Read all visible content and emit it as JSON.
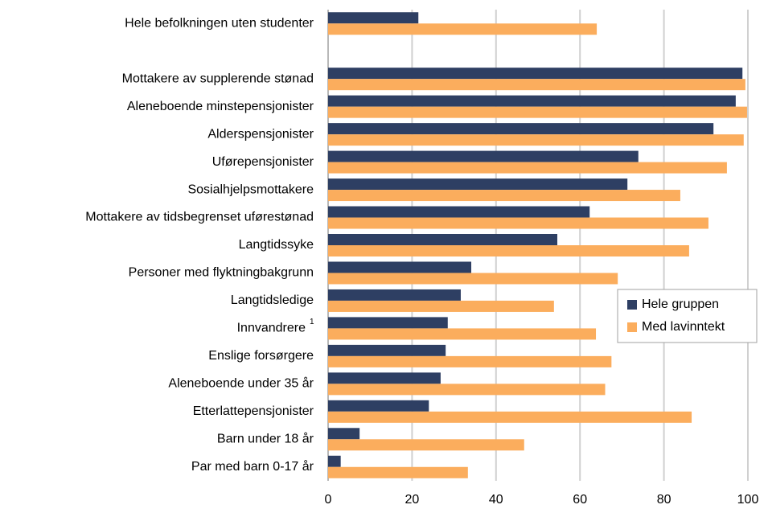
{
  "chart_data": {
    "type": "hbar",
    "categories": [
      "Hele befolkningen uten studenter",
      null,
      "Mottakere av supplerende stønad",
      "Aleneboende minstepensjonister",
      "Alderspensjonister",
      "Uførepensjonister",
      "Sosialhjelpsmottakere",
      "Mottakere av tidsbegrenset uførestønad",
      "Langtidssyke",
      "Personer med flyktningbakgrunn",
      "Langtidsledige",
      "Innvandrere",
      "Enslige forsørgere",
      "Aleneboende under 35 år",
      "Etterlattepensjonister",
      "Barn under 18 år",
      "Par med barn 0-17 år"
    ],
    "category_superscripts": [
      null,
      null,
      null,
      null,
      null,
      null,
      null,
      null,
      null,
      null,
      null,
      "1",
      null,
      null,
      null,
      null,
      null
    ],
    "series": [
      {
        "name": "Hele gruppen",
        "color": "#2e3f63",
        "values": [
          21.5,
          null,
          98.7,
          97.1,
          91.8,
          73.9,
          71.3,
          62.3,
          54.6,
          34.1,
          31.6,
          28.5,
          28,
          26.8,
          24,
          7.5,
          3
        ]
      },
      {
        "name": "Med lavinntekt",
        "color": "#fbad5d",
        "values": [
          64,
          null,
          99.4,
          99.8,
          99,
          95,
          83.9,
          90.6,
          86,
          69,
          53.8,
          63.8,
          67.5,
          66,
          86.6,
          46.7,
          33.3
        ]
      }
    ],
    "xlim": [
      0,
      100
    ],
    "xticks": [
      0,
      20,
      40,
      60,
      80,
      100
    ],
    "grid": true,
    "legend": "right"
  }
}
